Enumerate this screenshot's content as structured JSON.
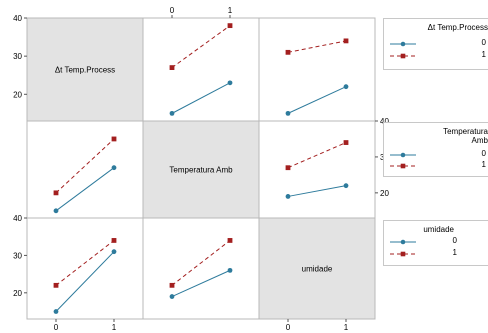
{
  "chart_data": {
    "type": "line",
    "levels": [
      "0",
      "1"
    ],
    "factors": [
      "Δt Temp.Process",
      "Temperatura Amb",
      "umidade"
    ],
    "ylim": [
      13,
      40
    ],
    "yticks": [
      20,
      30,
      40
    ],
    "grid": false,
    "legend_position": "right",
    "colors": {
      "level0": "#2e7b9c",
      "level1": "#a31f1f",
      "diag_fill": "#e3e3e3",
      "frame": "#b8b8b8"
    },
    "panels": [
      {
        "row": 0,
        "col": 1,
        "series": [
          {
            "level": "0",
            "values": [
              15,
              23
            ]
          },
          {
            "level": "1",
            "values": [
              27,
              38
            ]
          }
        ]
      },
      {
        "row": 0,
        "col": 2,
        "series": [
          {
            "level": "0",
            "values": [
              15,
              22
            ]
          },
          {
            "level": "1",
            "values": [
              31,
              34
            ]
          }
        ]
      },
      {
        "row": 1,
        "col": 0,
        "series": [
          {
            "level": "0",
            "values": [
              15,
              27
            ]
          },
          {
            "level": "1",
            "values": [
              20,
              35
            ]
          }
        ]
      },
      {
        "row": 1,
        "col": 2,
        "series": [
          {
            "level": "0",
            "values": [
              19,
              22
            ]
          },
          {
            "level": "1",
            "values": [
              27,
              34
            ]
          }
        ]
      },
      {
        "row": 2,
        "col": 0,
        "series": [
          {
            "level": "0",
            "values": [
              15,
              31
            ]
          },
          {
            "level": "1",
            "values": [
              22,
              34
            ]
          }
        ]
      },
      {
        "row": 2,
        "col": 1,
        "series": [
          {
            "level": "0",
            "values": [
              19,
              26
            ]
          },
          {
            "level": "1",
            "values": [
              22,
              34
            ]
          }
        ]
      }
    ],
    "diagonal_labels": [
      "Δt Temp.Process",
      "Temperatura Amb",
      "umidade"
    ],
    "legends": [
      {
        "title_lines": [
          "Δt Temp.Process"
        ],
        "entries": [
          "0",
          "1"
        ]
      },
      {
        "title_lines": [
          "Temperatura",
          "Amb"
        ],
        "entries": [
          "0",
          "1"
        ]
      },
      {
        "title_lines": [
          "umidade"
        ],
        "entries": [
          "0",
          "1"
        ]
      }
    ]
  }
}
